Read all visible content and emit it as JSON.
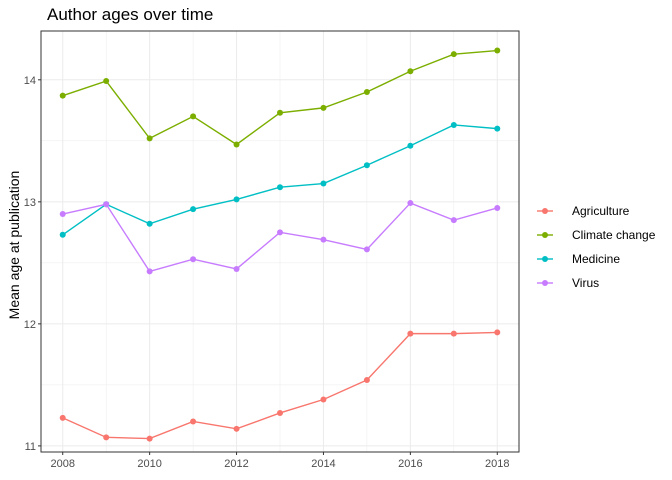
{
  "chart_data": {
    "type": "line",
    "title": "Author ages over time",
    "xlabel": "",
    "ylabel": "Mean age at publication",
    "x": [
      2008,
      2009,
      2010,
      2011,
      2012,
      2013,
      2014,
      2015,
      2016,
      2017,
      2018
    ],
    "xlim": [
      2007.5,
      2018.5
    ],
    "ylim": [
      10.95,
      14.4
    ],
    "x_ticks": [
      2008,
      2010,
      2012,
      2014,
      2016,
      2018
    ],
    "y_ticks": [
      11,
      12,
      13,
      14
    ],
    "grid": true,
    "legend_position": "right",
    "series": [
      {
        "name": "Agriculture",
        "color": "#F8766D",
        "values": [
          11.23,
          11.07,
          11.06,
          11.2,
          11.14,
          11.27,
          11.38,
          11.54,
          11.92,
          11.92,
          11.93
        ]
      },
      {
        "name": "Climate change",
        "color": "#7CAE00",
        "values": [
          13.87,
          13.99,
          13.52,
          13.7,
          13.47,
          13.73,
          13.77,
          13.9,
          14.07,
          14.21,
          14.24
        ]
      },
      {
        "name": "Medicine",
        "color": "#00BFC4",
        "values": [
          12.73,
          12.98,
          12.82,
          12.94,
          13.02,
          13.12,
          13.15,
          13.3,
          13.46,
          13.63,
          13.6
        ]
      },
      {
        "name": "Virus",
        "color": "#C77CFF",
        "values": [
          12.9,
          12.98,
          12.43,
          12.53,
          12.45,
          12.75,
          12.69,
          12.61,
          12.99,
          12.85,
          12.95
        ]
      }
    ]
  }
}
